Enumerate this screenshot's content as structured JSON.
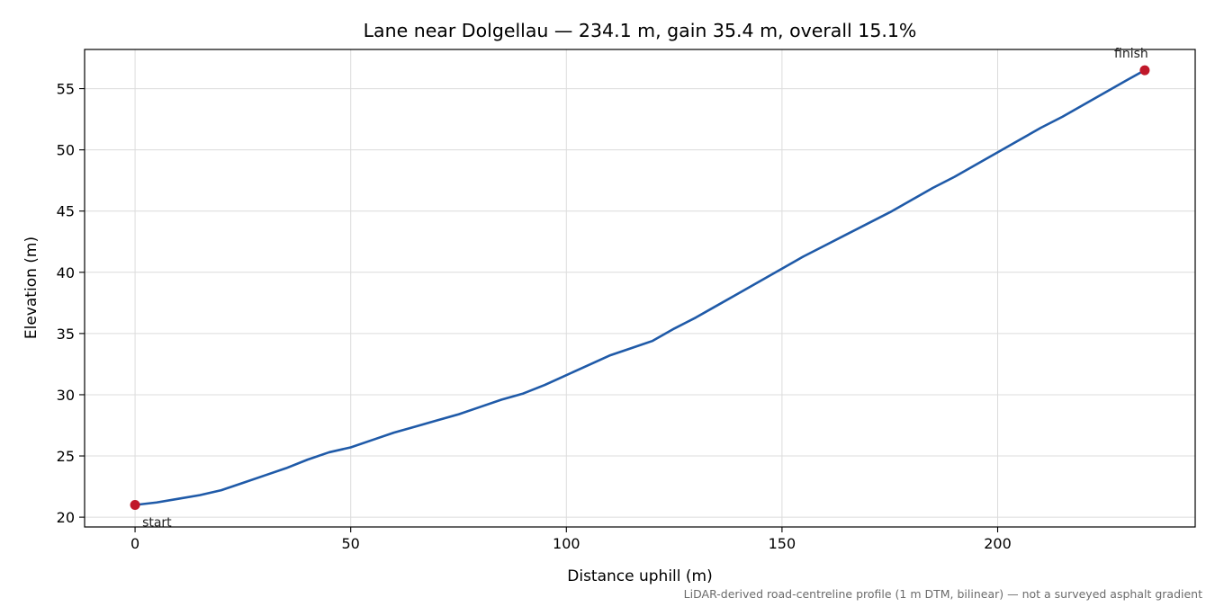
{
  "chart_data": {
    "type": "line",
    "title": "Lane near Dolgellau — 234.1 m, gain 35.4 m, overall 15.1%",
    "xlabel": "Distance uphill (m)",
    "ylabel": "Elevation (m)",
    "xlim": [
      -11.7,
      245.8
    ],
    "ylim": [
      19.2,
      58.2
    ],
    "xticks": [
      0,
      50,
      100,
      150,
      200
    ],
    "yticks": [
      20,
      25,
      30,
      35,
      40,
      45,
      50,
      55
    ],
    "grid": true,
    "legend": "none",
    "line_color": "#1f5aa8",
    "marker_color": "#c0182a",
    "series": [
      {
        "x": [
          0,
          5,
          10,
          15,
          20,
          25,
          30,
          35,
          40,
          45,
          50,
          55,
          60,
          65,
          70,
          75,
          80,
          85,
          90,
          95,
          100,
          105,
          110,
          115,
          120,
          125,
          130,
          135,
          140,
          145,
          150,
          155,
          160,
          165,
          170,
          175,
          180,
          185,
          190,
          195,
          200,
          205,
          210,
          215,
          220,
          225,
          230,
          234.1
        ],
        "y": [
          21.0,
          21.2,
          21.5,
          21.8,
          22.2,
          22.8,
          23.4,
          24.0,
          24.7,
          25.3,
          25.7,
          26.3,
          26.9,
          27.4,
          27.9,
          28.4,
          29.0,
          29.6,
          30.1,
          30.8,
          31.6,
          32.4,
          33.2,
          33.8,
          34.4,
          35.4,
          36.3,
          37.3,
          38.3,
          39.3,
          40.3,
          41.3,
          42.2,
          43.1,
          44.0,
          44.9,
          45.9,
          46.9,
          47.8,
          48.8,
          49.8,
          50.8,
          51.8,
          52.7,
          53.7,
          54.7,
          55.7,
          56.5
        ]
      }
    ],
    "annotations": [
      {
        "label": "start",
        "x": 0,
        "y": 21.0
      },
      {
        "label": "finish",
        "x": 234.1,
        "y": 56.5
      }
    ],
    "footnote": "LiDAR-derived road-centreline profile (1 m DTM, bilinear) — not a surveyed asphalt gradient"
  }
}
